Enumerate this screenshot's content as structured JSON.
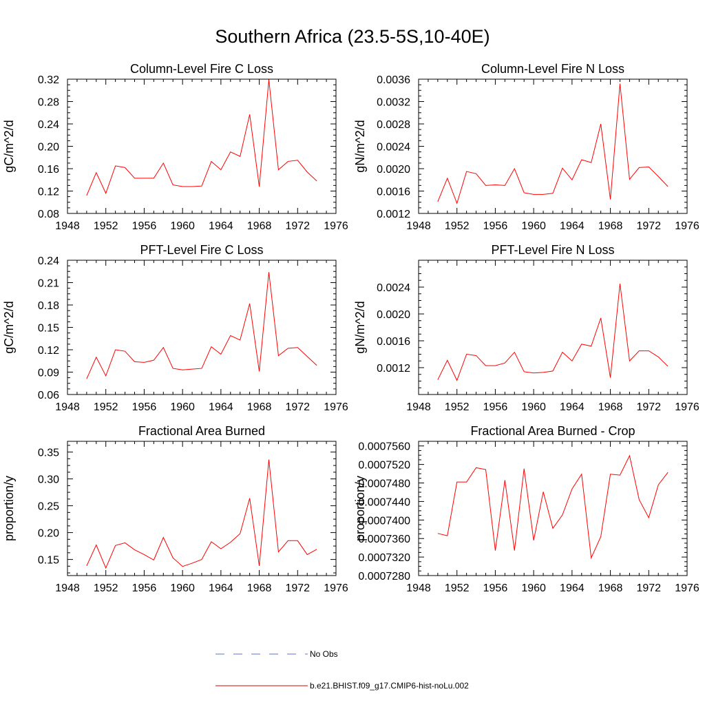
{
  "title": "Southern Africa (23.5-5S,10-40E)",
  "chart_data": [
    {
      "type": "line",
      "title": "Column-Level Fire C Loss",
      "ylabel": "gC/m^2/d",
      "xlim": [
        1948,
        1976
      ],
      "ylim": [
        0.08,
        0.32
      ],
      "xticks": [
        "1948",
        "1952",
        "1956",
        "1960",
        "1964",
        "1968",
        "1972",
        "1976"
      ],
      "yticks": [
        "0.08",
        "0.12",
        "0.16",
        "0.20",
        "0.24",
        "0.28",
        "0.32"
      ],
      "x": [
        1950,
        1951,
        1952,
        1953,
        1954,
        1955,
        1956,
        1957,
        1958,
        1959,
        1960,
        1961,
        1962,
        1963,
        1964,
        1965,
        1966,
        1967,
        1968,
        1969,
        1970,
        1971,
        1972,
        1973,
        1974
      ],
      "series": [
        {
          "name": "b.e21.BHIST.f09_g17.CMIP6-hist-noLu.002",
          "values": [
            0.112,
            0.153,
            0.116,
            0.165,
            0.162,
            0.143,
            0.143,
            0.143,
            0.17,
            0.131,
            0.128,
            0.128,
            0.129,
            0.173,
            0.158,
            0.19,
            0.182,
            0.257,
            0.128,
            0.319,
            0.158,
            0.173,
            0.175,
            0.154,
            0.138
          ]
        }
      ]
    },
    {
      "type": "line",
      "title": "Column-Level Fire N Loss",
      "ylabel": "gN/m^2/d",
      "xlim": [
        1948,
        1976
      ],
      "ylim": [
        0.0012,
        0.0036
      ],
      "xticks": [
        "1948",
        "1952",
        "1956",
        "1960",
        "1964",
        "1968",
        "1972",
        "1976"
      ],
      "yticks": [
        "0.0012",
        "0.0016",
        "0.0020",
        "0.0024",
        "0.0028",
        "0.0032",
        "0.0036"
      ],
      "x": [
        1950,
        1951,
        1952,
        1953,
        1954,
        1955,
        1956,
        1957,
        1958,
        1959,
        1960,
        1961,
        1962,
        1963,
        1964,
        1965,
        1966,
        1967,
        1968,
        1969,
        1970,
        1971,
        1972,
        1973,
        1974
      ],
      "series": [
        {
          "name": "b.e21.BHIST.f09_g17.CMIP6-hist-noLu.002",
          "values": [
            0.00141,
            0.00183,
            0.00138,
            0.00195,
            0.00191,
            0.0017,
            0.00171,
            0.0017,
            0.002,
            0.00157,
            0.00154,
            0.00154,
            0.00156,
            0.00201,
            0.0018,
            0.00216,
            0.00211,
            0.0028,
            0.00145,
            0.00352,
            0.00181,
            0.00202,
            0.00203,
            0.00186,
            0.00168
          ]
        }
      ]
    },
    {
      "type": "line",
      "title": "PFT-Level Fire C Loss",
      "ylabel": "gC/m^2/d",
      "xlim": [
        1948,
        1976
      ],
      "ylim": [
        0.06,
        0.24
      ],
      "xticks": [
        "1948",
        "1952",
        "1956",
        "1960",
        "1964",
        "1968",
        "1972",
        "1976"
      ],
      "yticks": [
        "0.06",
        "0.09",
        "0.12",
        "0.15",
        "0.18",
        "0.21",
        "0.24"
      ],
      "x": [
        1950,
        1951,
        1952,
        1953,
        1954,
        1955,
        1956,
        1957,
        1958,
        1959,
        1960,
        1961,
        1962,
        1963,
        1964,
        1965,
        1966,
        1967,
        1968,
        1969,
        1970,
        1971,
        1972,
        1973,
        1974
      ],
      "series": [
        {
          "name": "b.e21.BHIST.f09_g17.CMIP6-hist-noLu.002",
          "values": [
            0.081,
            0.11,
            0.085,
            0.12,
            0.118,
            0.104,
            0.103,
            0.106,
            0.123,
            0.095,
            0.093,
            0.094,
            0.095,
            0.124,
            0.114,
            0.139,
            0.133,
            0.182,
            0.091,
            0.224,
            0.112,
            0.122,
            0.123,
            0.111,
            0.099
          ]
        }
      ]
    },
    {
      "type": "line",
      "title": "PFT-Level Fire N Loss",
      "ylabel": "gN/m^2/d",
      "xlim": [
        1948,
        1976
      ],
      "ylim": [
        0.0008,
        0.0028
      ],
      "xticks": [
        "1948",
        "1952",
        "1956",
        "1960",
        "1964",
        "1968",
        "1972",
        "1976"
      ],
      "yticks": [
        "0.0012",
        "0.0016",
        "0.0020",
        "0.0024"
      ],
      "x": [
        1950,
        1951,
        1952,
        1953,
        1954,
        1955,
        1956,
        1957,
        1958,
        1959,
        1960,
        1961,
        1962,
        1963,
        1964,
        1965,
        1966,
        1967,
        1968,
        1969,
        1970,
        1971,
        1972,
        1973,
        1974
      ],
      "series": [
        {
          "name": "b.e21.BHIST.f09_g17.CMIP6-hist-noLu.002",
          "values": [
            0.00102,
            0.00131,
            0.00101,
            0.0014,
            0.00138,
            0.00123,
            0.00123,
            0.00127,
            0.00143,
            0.00114,
            0.00112,
            0.00113,
            0.00115,
            0.00143,
            0.0013,
            0.00155,
            0.00152,
            0.00194,
            0.00105,
            0.00245,
            0.0013,
            0.00145,
            0.00145,
            0.00136,
            0.00122
          ]
        }
      ]
    },
    {
      "type": "line",
      "title": "Fractional Area Burned",
      "ylabel": "proportion/y",
      "xlim": [
        1948,
        1976
      ],
      "ylim": [
        0.12,
        0.37
      ],
      "xticks": [
        "1948",
        "1952",
        "1956",
        "1960",
        "1964",
        "1968",
        "1972",
        "1976"
      ],
      "yticks": [
        "0.15",
        "0.20",
        "0.25",
        "0.30",
        "0.35"
      ],
      "x": [
        1950,
        1951,
        1952,
        1953,
        1954,
        1955,
        1956,
        1957,
        1958,
        1959,
        1960,
        1961,
        1962,
        1963,
        1964,
        1965,
        1966,
        1967,
        1968,
        1969,
        1970,
        1971,
        1972,
        1973,
        1974
      ],
      "series": [
        {
          "name": "b.e21.BHIST.f09_g17.CMIP6-hist-noLu.002",
          "values": [
            0.138,
            0.177,
            0.134,
            0.176,
            0.181,
            0.168,
            0.159,
            0.149,
            0.191,
            0.153,
            0.137,
            0.143,
            0.15,
            0.183,
            0.17,
            0.182,
            0.198,
            0.264,
            0.138,
            0.336,
            0.164,
            0.185,
            0.185,
            0.159,
            0.169
          ]
        }
      ]
    },
    {
      "type": "line",
      "title": "Fractional Area Burned - Crop",
      "ylabel": "proportion/y",
      "xlim": [
        1948,
        1976
      ],
      "ylim": [
        0.000728,
        0.000757
      ],
      "xticks": [
        "1948",
        "1952",
        "1956",
        "1960",
        "1964",
        "1968",
        "1972",
        "1976"
      ],
      "yticks": [
        "0.0007280",
        "0.0007320",
        "0.0007360",
        "0.0007400",
        "0.0007440",
        "0.0007480",
        "0.0007520",
        "0.0007560"
      ],
      "x": [
        1950,
        1951,
        1952,
        1953,
        1954,
        1955,
        1956,
        1957,
        1958,
        1959,
        1960,
        1961,
        1962,
        1963,
        1964,
        1965,
        1966,
        1967,
        1968,
        1969,
        1970,
        1971,
        1972,
        1973,
        1974
      ],
      "series": [
        {
          "name": "b.e21.BHIST.f09_g17.CMIP6-hist-noLu.002",
          "values": [
            0.0007371,
            0.0007366,
            0.0007482,
            0.0007482,
            0.0007513,
            0.0007509,
            0.0007334,
            0.0007486,
            0.0007334,
            0.0007511,
            0.0007356,
            0.0007461,
            0.0007382,
            0.0007411,
            0.0007467,
            0.0007499,
            0.0007318,
            0.0007364,
            0.0007499,
            0.0007497,
            0.0007539,
            0.0007444,
            0.0007405,
            0.0007476,
            0.0007503
          ]
        }
      ]
    }
  ],
  "legend": {
    "obs_label": "No Obs",
    "model_label": "b.e21.BHIST.f09_g17.CMIP6-hist-noLu.002",
    "obs_color": "#5b6fd6",
    "model_color": "#e00000"
  },
  "colors": {
    "series": "#ff0000",
    "axis": "#000000"
  }
}
